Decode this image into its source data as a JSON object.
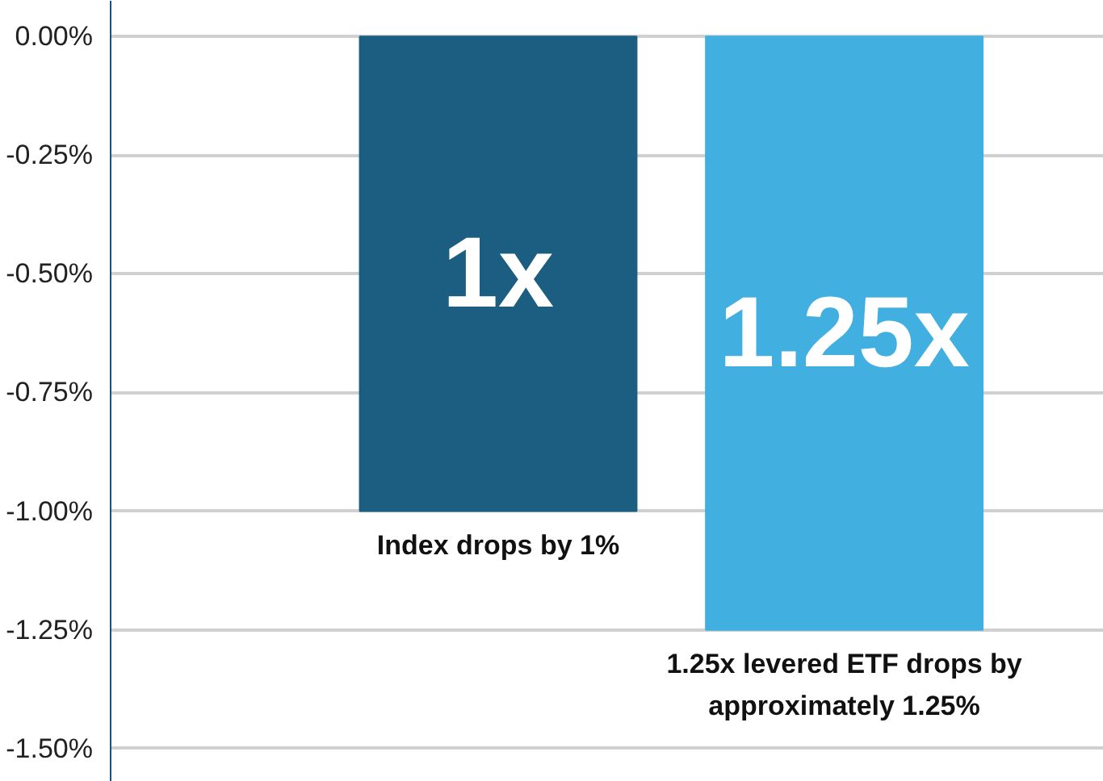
{
  "chart_data": {
    "type": "bar",
    "categories": [
      "Index drops by 1%",
      "1.25x levered ETF drops by approximately 1.25%"
    ],
    "values": [
      -1.0,
      -1.25
    ],
    "colors": [
      "#1b5e82",
      "#41afe0"
    ],
    "annotations": [
      "1x",
      "1.25x"
    ],
    "ylim": [
      -1.57,
      0.075
    ],
    "yticks": [
      {
        "value": 0,
        "label": "0.00%"
      },
      {
        "value": -0.25,
        "label": "-0.25%"
      },
      {
        "value": -0.5,
        "label": "-0.50%"
      },
      {
        "value": -0.75,
        "label": "-0.75%"
      },
      {
        "value": -1.0,
        "label": "-1.00%"
      },
      {
        "value": -1.25,
        "label": "-1.25%"
      },
      {
        "value": -1.5,
        "label": "-1.50%"
      }
    ],
    "grid": "y",
    "legend": false
  }
}
